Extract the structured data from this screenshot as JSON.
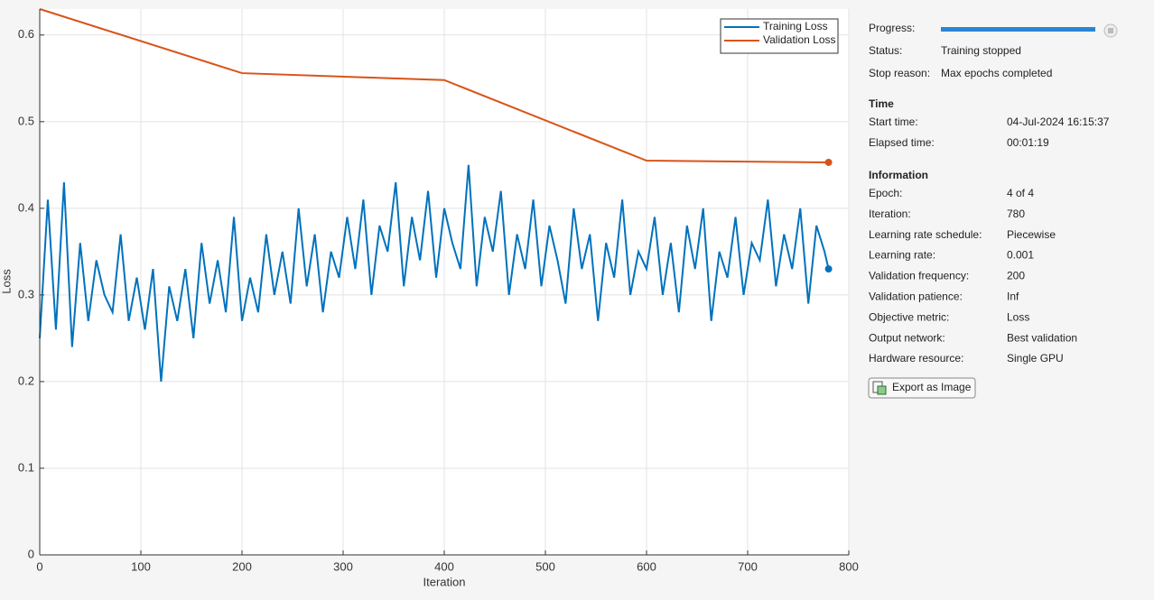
{
  "chart_data": {
    "type": "line",
    "x_label": "Iteration",
    "y_label": "Loss",
    "xlim": [
      0,
      800
    ],
    "xticks": [
      0,
      100,
      200,
      300,
      400,
      500,
      600,
      700,
      800
    ],
    "ylim": [
      0,
      0.63
    ],
    "yticks": [
      0,
      0.1,
      0.2,
      0.3,
      0.4,
      0.5,
      0.6
    ],
    "grid": true,
    "legend": "upper right",
    "series": [
      {
        "name": "Training Loss",
        "color": "#0072bd",
        "x": [
          0,
          8,
          16,
          24,
          32,
          40,
          48,
          56,
          64,
          72,
          80,
          88,
          96,
          104,
          112,
          120,
          128,
          136,
          144,
          152,
          160,
          168,
          176,
          184,
          192,
          200,
          208,
          216,
          224,
          232,
          240,
          248,
          256,
          264,
          272,
          280,
          288,
          296,
          304,
          312,
          320,
          328,
          336,
          344,
          352,
          360,
          368,
          376,
          384,
          392,
          400,
          408,
          416,
          424,
          432,
          440,
          448,
          456,
          464,
          472,
          480,
          488,
          496,
          504,
          512,
          520,
          528,
          536,
          544,
          552,
          560,
          568,
          576,
          584,
          592,
          600,
          608,
          616,
          624,
          632,
          640,
          648,
          656,
          664,
          672,
          680,
          688,
          696,
          704,
          712,
          720,
          728,
          736,
          744,
          752,
          760,
          768,
          776,
          780
        ],
        "values": [
          0.25,
          0.41,
          0.26,
          0.43,
          0.24,
          0.36,
          0.27,
          0.34,
          0.3,
          0.28,
          0.37,
          0.27,
          0.32,
          0.26,
          0.33,
          0.2,
          0.31,
          0.27,
          0.33,
          0.25,
          0.36,
          0.29,
          0.34,
          0.28,
          0.39,
          0.27,
          0.32,
          0.28,
          0.37,
          0.3,
          0.35,
          0.29,
          0.4,
          0.31,
          0.37,
          0.28,
          0.35,
          0.32,
          0.39,
          0.33,
          0.41,
          0.3,
          0.38,
          0.35,
          0.43,
          0.31,
          0.39,
          0.34,
          0.42,
          0.32,
          0.4,
          0.36,
          0.33,
          0.45,
          0.31,
          0.39,
          0.35,
          0.42,
          0.3,
          0.37,
          0.33,
          0.41,
          0.31,
          0.38,
          0.34,
          0.29,
          0.4,
          0.33,
          0.37,
          0.27,
          0.36,
          0.32,
          0.41,
          0.3,
          0.35,
          0.33,
          0.39,
          0.3,
          0.36,
          0.28,
          0.38,
          0.33,
          0.4,
          0.27,
          0.35,
          0.32,
          0.39,
          0.3,
          0.36,
          0.34,
          0.41,
          0.31,
          0.37,
          0.33,
          0.4,
          0.29,
          0.38,
          0.35,
          0.33
        ]
      },
      {
        "name": "Validation Loss",
        "color": "#d95319",
        "x": [
          0,
          200,
          400,
          600,
          780
        ],
        "values": [
          0.63,
          0.556,
          0.548,
          0.455,
          0.453
        ]
      }
    ]
  },
  "panel": {
    "progress": "Progress:",
    "top_rows": [
      [
        "Status:",
        "Training stopped"
      ],
      [
        "Stop reason:",
        "Max epochs completed"
      ]
    ],
    "sections": [
      {
        "title": "Time",
        "rows": [
          [
            "Start time:",
            "04-Jul-2024 16:15:37"
          ],
          [
            "Elapsed time:",
            "00:01:19"
          ]
        ]
      },
      {
        "title": "Information",
        "rows": [
          [
            "Epoch:",
            "4 of 4"
          ],
          [
            "Iteration:",
            "780"
          ],
          [
            "Learning rate schedule:",
            "Piecewise"
          ],
          [
            "Learning rate:",
            "0.001"
          ],
          [
            "Validation frequency:",
            "200"
          ],
          [
            "Validation patience:",
            "Inf"
          ],
          [
            "Objective metric:",
            "Loss"
          ],
          [
            "Output network:",
            "Best validation"
          ],
          [
            "Hardware resource:",
            "Single GPU"
          ]
        ]
      }
    ],
    "button": "Export as Image"
  }
}
